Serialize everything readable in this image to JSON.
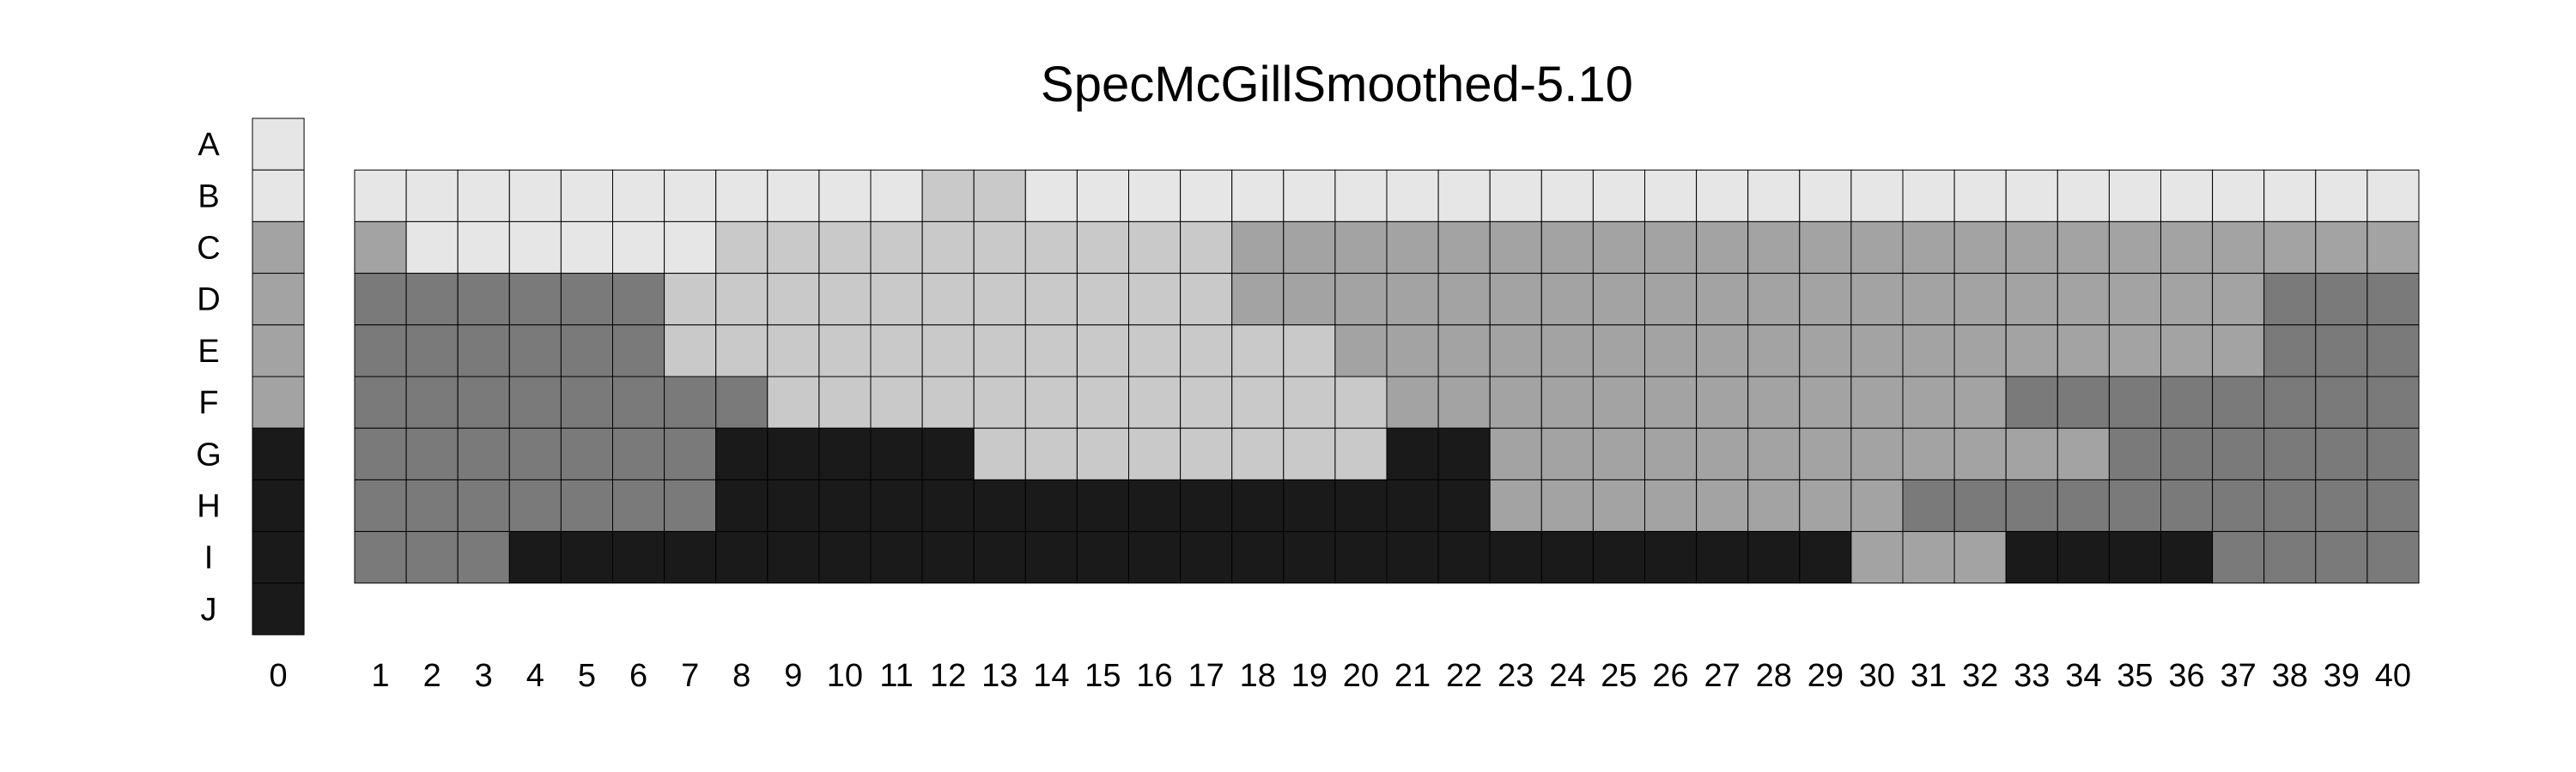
{
  "chart_data": {
    "type": "heatmap",
    "title": "SpecMcGillSmoothed-5.10",
    "rows": [
      "A",
      "B",
      "C",
      "D",
      "E",
      "F",
      "G",
      "H",
      "I",
      "J"
    ],
    "legend_column_label": "0",
    "legend_values": [
      "L1",
      "L1",
      "L3",
      "L3",
      "L3",
      "L3",
      "L5",
      "L5",
      "L5",
      "L5"
    ],
    "columns": [
      "1",
      "2",
      "3",
      "4",
      "5",
      "6",
      "7",
      "8",
      "9",
      "10",
      "11",
      "12",
      "13",
      "14",
      "15",
      "16",
      "17",
      "18",
      "19",
      "20",
      "21",
      "22",
      "23",
      "24",
      "25",
      "26",
      "27",
      "28",
      "29",
      "30",
      "31",
      "32",
      "33",
      "34",
      "35",
      "36",
      "37",
      "38",
      "39",
      "40"
    ],
    "grid_rows": [
      "B",
      "C",
      "D",
      "E",
      "F",
      "G",
      "H",
      "I"
    ],
    "values": [
      "1111111111122111111111111111111111111111",
      "3111111222222222233333333333333333333333",
      "4444442222222222233333333333333333333444",
      "4444442222222222222333333333333333333444",
      "4444444422222222222233333333333344444444",
      "4444444555552222222255333333333333444444",
      "4444444555555555555555333333334444444444",
      "4445555555555555555555555555533355554444"
    ],
    "levels": {
      "1": "#e6e6e6",
      "2": "#c9c9c9",
      "3": "#a3a3a3",
      "4": "#7a7a7a",
      "5": "#1a1a1a"
    },
    "level_index": {
      "L1": "1",
      "L3": "3",
      "L5": "5"
    }
  }
}
